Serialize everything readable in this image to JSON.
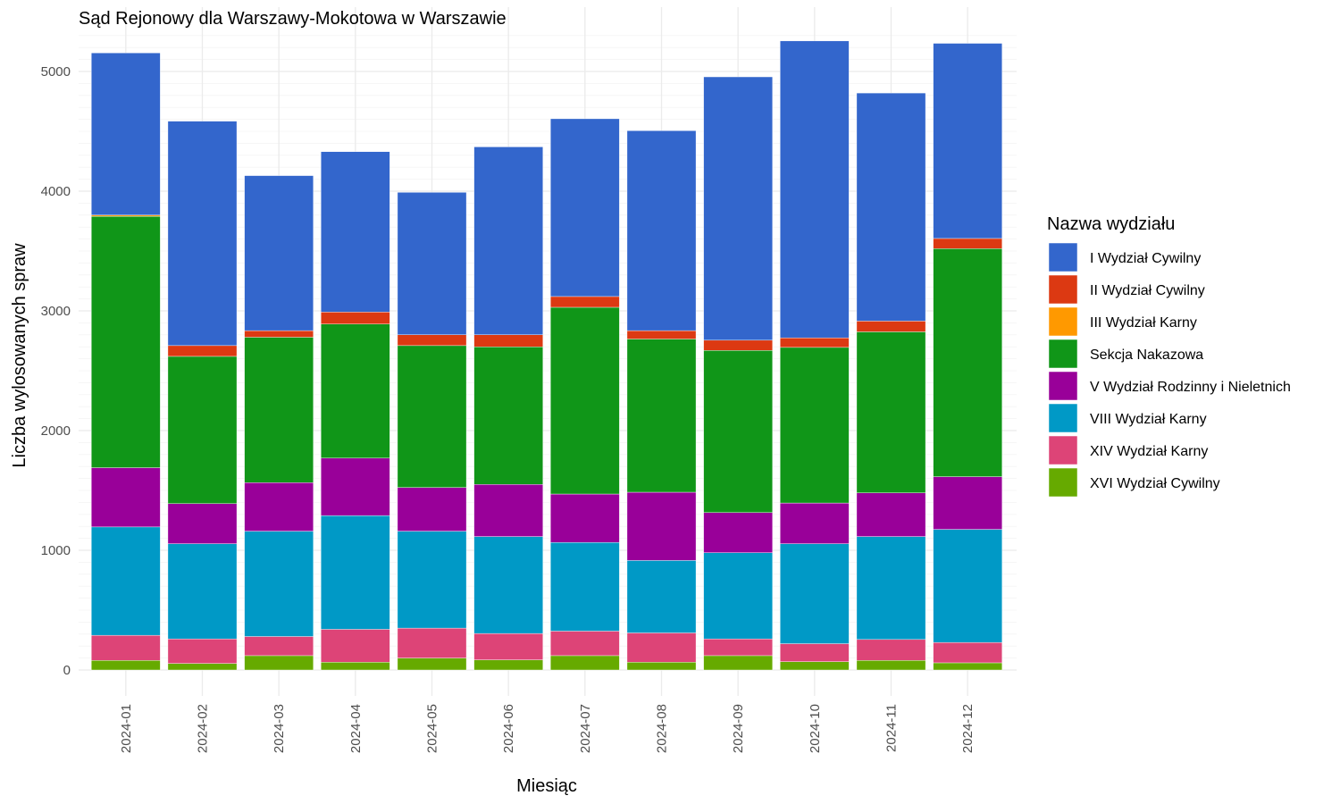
{
  "chart_data": {
    "type": "bar",
    "stacked": true,
    "title": "Sąd Rejonowy dla Warszawy-Mokotowa w Warszawie",
    "xlabel": "Miesiąc",
    "ylabel": "Liczba wylosowanych spraw",
    "ylim": [
      0,
      5300
    ],
    "y_ticks": [
      0,
      1000,
      2000,
      3000,
      4000,
      5000
    ],
    "grid": true,
    "legend_title": "Nazwa wydziału",
    "legend_position": "right",
    "categories": [
      "2024-01",
      "2024-02",
      "2024-03",
      "2024-04",
      "2024-05",
      "2024-06",
      "2024-07",
      "2024-08",
      "2024-09",
      "2024-10",
      "2024-11",
      "2024-12"
    ],
    "series": [
      {
        "name": "XVI Wydział Cywilny",
        "color": "#66aa00",
        "values": [
          80,
          55,
          120,
          65,
          100,
          85,
          120,
          65,
          120,
          70,
          80,
          60
        ]
      },
      {
        "name": "XIV Wydział Karny",
        "color": "#dd4477",
        "values": [
          210,
          205,
          160,
          275,
          250,
          220,
          205,
          245,
          140,
          150,
          175,
          170
        ]
      },
      {
        "name": "VIII Wydział Karny",
        "color": "#0099c6",
        "values": [
          905,
          795,
          880,
          950,
          810,
          810,
          740,
          605,
          720,
          835,
          860,
          945
        ]
      },
      {
        "name": "V Wydział Rodzinny i Nieletnich",
        "color": "#990099",
        "values": [
          495,
          335,
          405,
          480,
          365,
          435,
          405,
          570,
          335,
          340,
          365,
          440
        ]
      },
      {
        "name": "Sekcja Nakazowa",
        "color": "#109618",
        "values": [
          2100,
          1230,
          1215,
          1120,
          1185,
          1150,
          1560,
          1280,
          1355,
          1300,
          1345,
          1905
        ]
      },
      {
        "name": "III Wydział Karny",
        "color": "#ff9900",
        "values": [
          10,
          0,
          0,
          0,
          0,
          0,
          0,
          0,
          0,
          0,
          0,
          0
        ]
      },
      {
        "name": "II Wydział Cywilny",
        "color": "#dc3912",
        "values": [
          0,
          90,
          55,
          100,
          90,
          100,
          90,
          70,
          85,
          80,
          90,
          85
        ]
      },
      {
        "name": "I Wydział Cywilny",
        "color": "#3366cc",
        "values": [
          1355,
          1875,
          1295,
          1340,
          1190,
          1570,
          1485,
          1670,
          2200,
          2480,
          1905,
          1630
        ]
      }
    ],
    "legend_order": [
      "I Wydział Cywilny",
      "II Wydział Cywilny",
      "III Wydział Karny",
      "Sekcja Nakazowa",
      "V Wydział Rodzinny i Nieletnich",
      "VIII Wydział Karny",
      "XIV Wydział Karny",
      "XVI Wydział Cywilny"
    ]
  }
}
